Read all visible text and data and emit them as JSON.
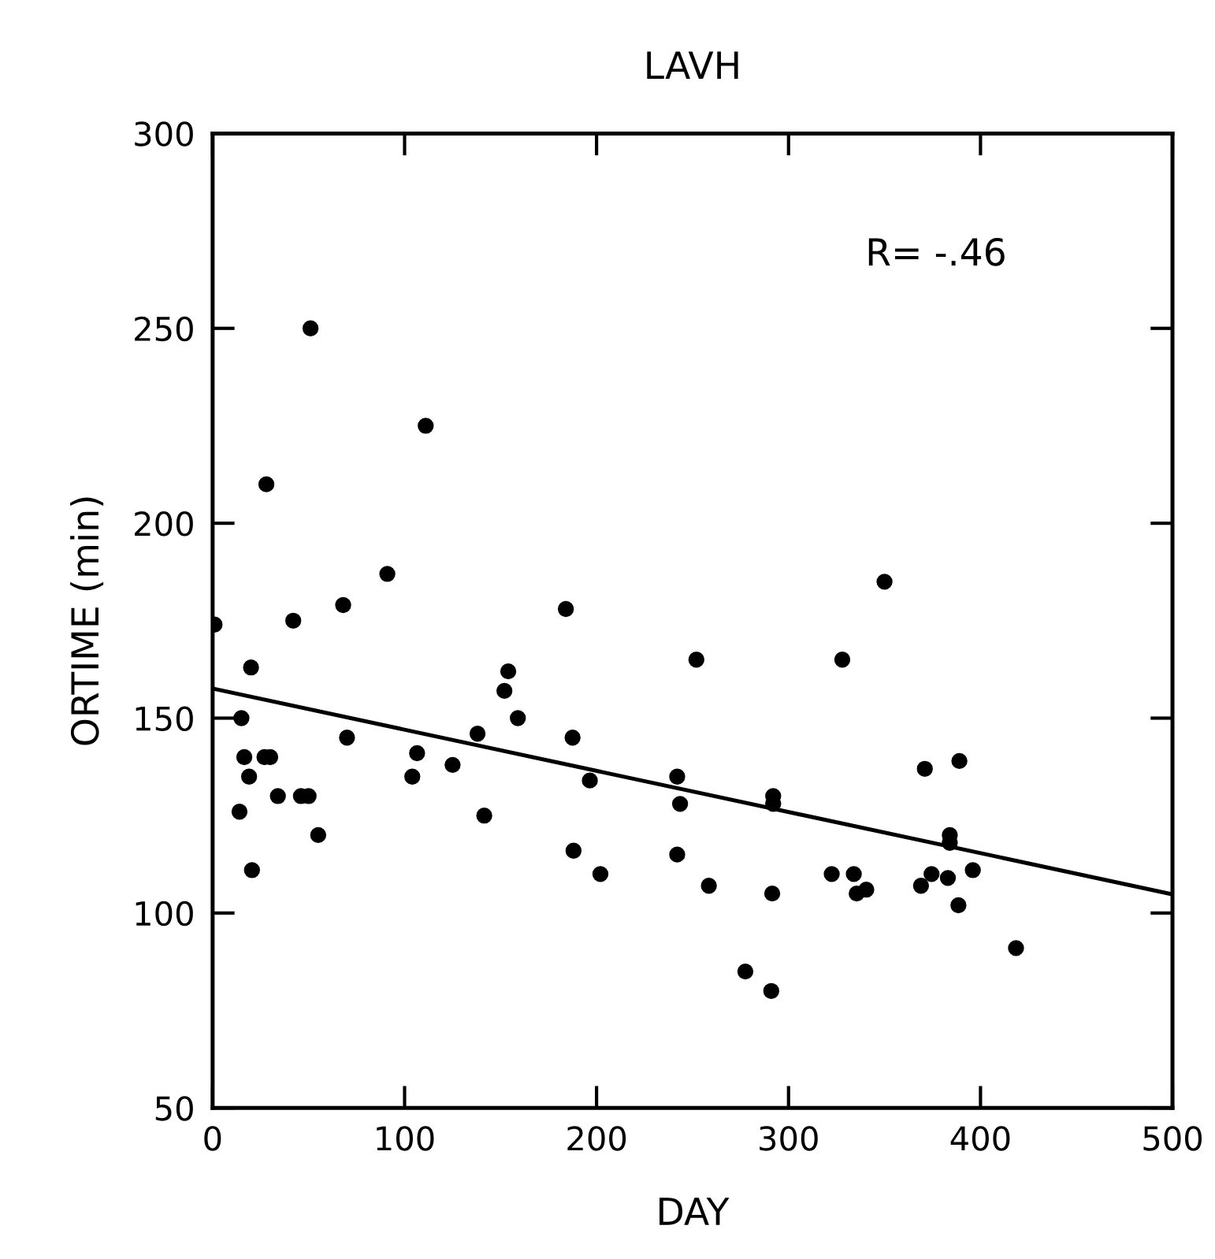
{
  "chart_data": {
    "type": "scatter",
    "title": "LAVH",
    "xlabel": "DAY",
    "ylabel": "ORTIME (min)",
    "annotations": [
      "R= -.46"
    ],
    "xlim": [
      0,
      500
    ],
    "ylim": [
      50,
      300
    ],
    "xticks": [
      0,
      100,
      200,
      300,
      400,
      500
    ],
    "yticks": [
      50,
      100,
      150,
      200,
      250,
      300
    ],
    "grid": false,
    "marker": "circle",
    "series": [
      {
        "color": "#000000",
        "x": [
          51,
          111,
          28,
          91,
          68,
          42,
          1,
          184,
          20,
          15,
          16.5,
          19,
          27,
          30,
          14,
          34,
          46,
          50,
          55,
          20.5,
          70,
          104,
          106.5,
          125,
          138,
          141.5,
          154,
          152,
          159,
          187.5,
          188,
          196.5,
          202,
          242,
          243.5,
          242,
          252,
          328,
          258.5,
          292,
          292,
          291.5,
          277.5,
          291,
          322.5,
          334,
          335.5,
          340.5,
          371,
          389,
          369,
          374.5,
          383,
          384,
          384,
          396,
          388.5,
          418.5,
          350
        ],
        "values": [
          250,
          225,
          210,
          187,
          179,
          175,
          174,
          178,
          163,
          150,
          140,
          135,
          140,
          140,
          126,
          130,
          130,
          130,
          120,
          111,
          145,
          135,
          141,
          138,
          146,
          125,
          162,
          157,
          150,
          145,
          116,
          134,
          110,
          135,
          128,
          115,
          165,
          165,
          107,
          130,
          128,
          105,
          85,
          80,
          110,
          110,
          105,
          106,
          137,
          139,
          107,
          110,
          109,
          120,
          118,
          111,
          102,
          91,
          185
        ]
      },
      {
        "type": "line",
        "color": "#000000",
        "x": [
          0,
          500
        ],
        "values": [
          157.6,
          104.8
        ],
        "marker": "none",
        "line_style": "solid"
      }
    ]
  }
}
